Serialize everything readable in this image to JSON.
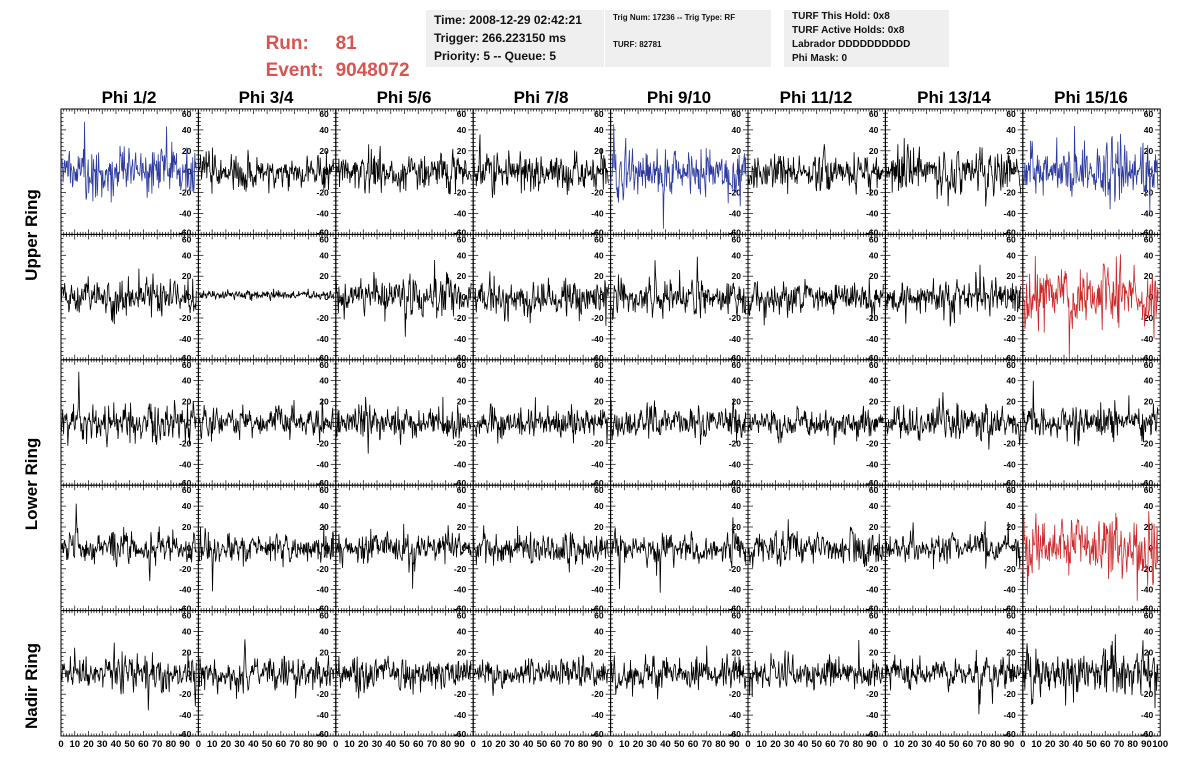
{
  "header": {
    "run_label": "Run:",
    "run_value": "81",
    "event_label": "Event:",
    "event_value": "9048072",
    "box1": {
      "time": "Time: 2008-12-29 02:42:21",
      "trigger": "Trigger: 266.223150 ms",
      "priority": "Priority: 5 -- Queue: 5"
    },
    "box2": {
      "trig": "Trig Num: 17236 -- Trig Type: RF",
      "turf": "TURF: 82781"
    },
    "box3": {
      "hold": "TURF This Hold: 0x8",
      "active": "TURF Active Holds: 0x8",
      "labrador": "Labrador DDDDDDDDDD",
      "mask": "Phi Mask: 0"
    }
  },
  "columns": [
    "Phi 1/2",
    "Phi 3/4",
    "Phi 5/6",
    "Phi 7/8",
    "Phi 9/10",
    "Phi 11/12",
    "Phi 13/14",
    "Phi 15/16"
  ],
  "row_groups": [
    {
      "label": "Upper Ring"
    },
    {
      "label": "Lower Ring"
    },
    {
      "label": "Nadir Ring"
    }
  ],
  "colors": {
    "normal": "#000000",
    "blue": "#2b3a9e",
    "red": "#cc2a2a",
    "header_red": "#d9534f",
    "box_bg": "#efefef"
  },
  "chart_data": {
    "type": "line",
    "xlim": [
      0,
      100
    ],
    "ylim": [
      -60,
      60
    ],
    "x_tick_labels": [
      "0",
      "10",
      "20",
      "30",
      "40",
      "50",
      "60",
      "70",
      "80",
      "90",
      "100"
    ],
    "y_tick_labels": [
      "60",
      "40",
      "20",
      "0",
      "-20",
      "-40",
      "-60"
    ],
    "panels_rows": 5,
    "panels_cols": 8,
    "panel_styles": [
      [
        "blue",
        "normal",
        "normal",
        "normal",
        "blue",
        "normal",
        "normal",
        "blue"
      ],
      [
        "normal",
        "flat",
        "normal",
        "normal",
        "normal",
        "normal",
        "normal",
        "red"
      ],
      [
        "normal",
        "normal",
        "normal",
        "normal",
        "normal",
        "normal",
        "normal",
        "normal"
      ],
      [
        "normal",
        "normal",
        "normal",
        "normal",
        "normal",
        "normal",
        "normal",
        "red"
      ],
      [
        "normal",
        "normal",
        "normal",
        "normal",
        "normal",
        "normal",
        "normal",
        "normal"
      ]
    ],
    "panel_amplitudes": [
      [
        17,
        11,
        12,
        14,
        15,
        11,
        14,
        18
      ],
      [
        12,
        2,
        12,
        12,
        11,
        11,
        11,
        19
      ],
      [
        12,
        10,
        11,
        10,
        11,
        10,
        11,
        11
      ],
      [
        10,
        10,
        10,
        10,
        10,
        11,
        10,
        19
      ],
      [
        12,
        10,
        10,
        9,
        10,
        10,
        10,
        14
      ]
    ],
    "samples": 260
  }
}
